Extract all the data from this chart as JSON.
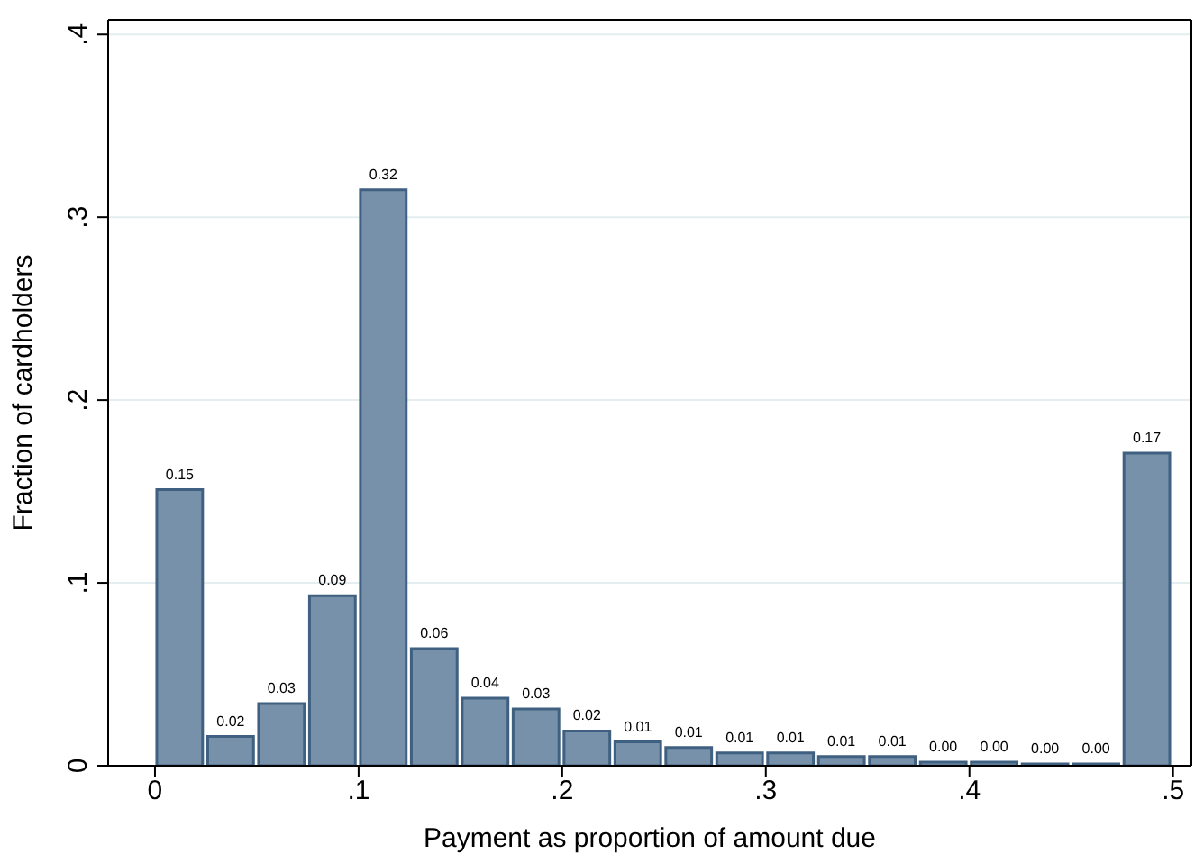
{
  "chart_data": {
    "type": "histogram",
    "xlabel": "Payment as proportion of amount due",
    "ylabel": "Fraction of cardholders",
    "bins": [
      0,
      0.025,
      0.05,
      0.075,
      0.1,
      0.125,
      0.15,
      0.175,
      0.2,
      0.225,
      0.25,
      0.275,
      0.3,
      0.325,
      0.35,
      0.375,
      0.4,
      0.425,
      0.45,
      0.475,
      0.5
    ],
    "values": [
      0.151,
      0.016,
      0.034,
      0.093,
      0.315,
      0.064,
      0.037,
      0.031,
      0.019,
      0.013,
      0.01,
      0.007,
      0.007,
      0.005,
      0.005,
      0.002,
      0.002,
      0.001,
      0.001,
      0.171
    ],
    "value_labels": [
      "0.15",
      "0.02",
      "0.03",
      "0.09",
      "0.32",
      "0.06",
      "0.04",
      "0.03",
      "0.02",
      "0.01",
      "0.01",
      "0.01",
      "0.01",
      "0.01",
      "0.01",
      "0.00",
      "0.00",
      "0.00",
      "0.00",
      "0.17"
    ],
    "color": "#7891aa",
    "xlim": [
      -0.023,
      0.509
    ],
    "xticks": [
      0,
      {
        "value": 0.1,
        "label": ".1"
      },
      {
        "value": 0.2,
        "label": ".2"
      },
      {
        "value": 0.3,
        "label": ".3"
      },
      {
        "value": 0.4,
        "label": ".4"
      },
      {
        "value": 0.5,
        "label": ".5"
      }
    ],
    "ylim": [
      0,
      0.408
    ],
    "yticks": [
      0,
      {
        "value": 0.1,
        "label": ".1"
      },
      {
        "value": 0.2,
        "label": ".2"
      },
      {
        "value": 0.3,
        "label": ".3"
      },
      {
        "value": 0.4,
        "label": ".4"
      }
    ],
    "grid": "y",
    "legend": false
  }
}
